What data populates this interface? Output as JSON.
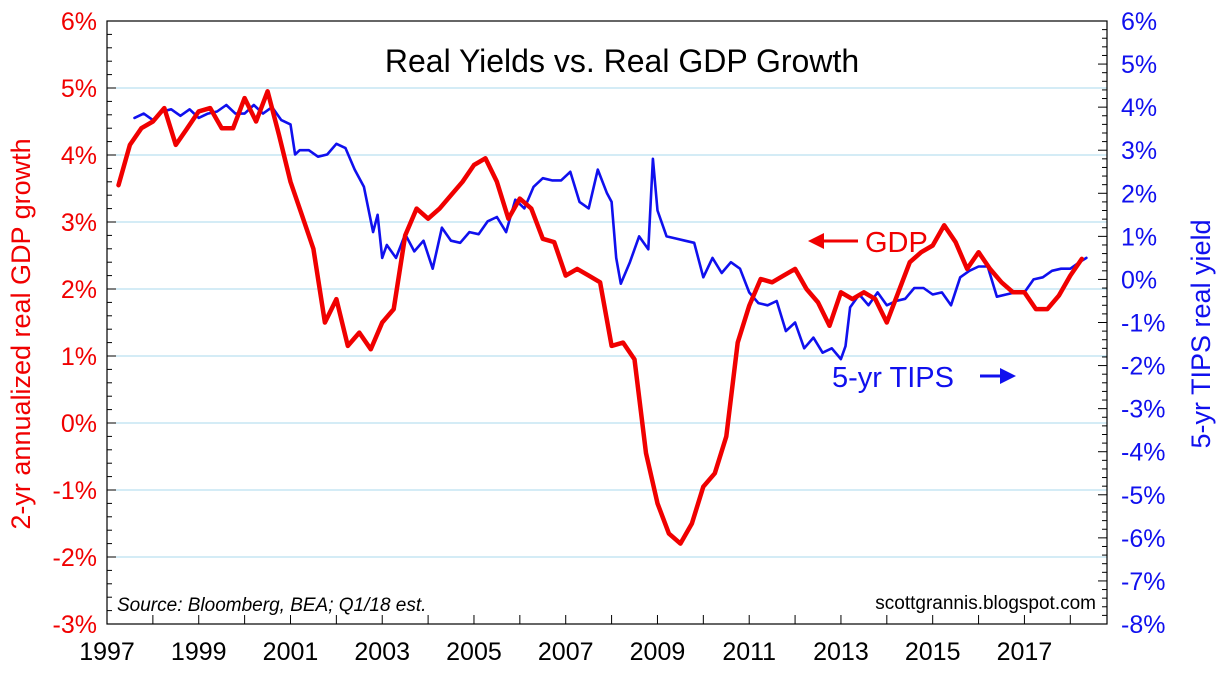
{
  "chart_data": {
    "type": "line",
    "title": "Real Yields vs. Real GDP Growth",
    "ylabel_left": "2-yr annualized real GDP growth",
    "ylabel_right": "5-yr TIPS real yield",
    "source_note": "Source: Bloomberg, BEA; Q1/18 est.",
    "credit": "scottgrannis.blogspot.com",
    "xlim": [
      1997.0,
      2018.8
    ],
    "x_ticks": [
      1997,
      1999,
      2001,
      2003,
      2005,
      2007,
      2009,
      2011,
      2013,
      2015,
      2017
    ],
    "x_tick_labels": [
      "1997",
      "1999",
      "2001",
      "2003",
      "2005",
      "2007",
      "2009",
      "2011",
      "2013",
      "2015",
      "2017"
    ],
    "ylim_left": [
      -3,
      6
    ],
    "ylim_right": [
      -8,
      6
    ],
    "left_ticks": [
      6,
      5,
      4,
      3,
      2,
      1,
      0,
      -1,
      -2,
      -3
    ],
    "left_tick_labels": [
      "6%",
      "5%",
      "4%",
      "3%",
      "2%",
      "1%",
      "0%",
      "-1%",
      "-2%",
      "-3%"
    ],
    "right_ticks": [
      6,
      5,
      4,
      3,
      2,
      1,
      0,
      -1,
      -2,
      -3,
      -4,
      -5,
      -6,
      -7,
      -8
    ],
    "right_tick_labels": [
      "6%",
      "5%",
      "4%",
      "3%",
      "2%",
      "1%",
      "0%",
      "-1%",
      "-2%",
      "-3%",
      "-4%",
      "-5%",
      "-6%",
      "-7%",
      "-8%"
    ],
    "grid": true,
    "annotations": {
      "gdp": "GDP",
      "tips": "5-yr TIPS"
    },
    "colors": {
      "gdp": "#f00000",
      "tips": "#1010ee",
      "grid": "#a8d8ee"
    },
    "series": [
      {
        "name": "GDP",
        "axis": "left",
        "x": [
          1997.25,
          1997.5,
          1997.75,
          1998.0,
          1998.25,
          1998.5,
          1998.75,
          1999.0,
          1999.25,
          1999.5,
          1999.75,
          2000.0,
          2000.25,
          2000.5,
          2000.75,
          2001.0,
          2001.25,
          2001.5,
          2001.75,
          2002.0,
          2002.25,
          2002.5,
          2002.75,
          2003.0,
          2003.25,
          2003.5,
          2003.75,
          2004.0,
          2004.25,
          2004.5,
          2004.75,
          2005.0,
          2005.25,
          2005.5,
          2005.75,
          2006.0,
          2006.25,
          2006.5,
          2006.75,
          2007.0,
          2007.25,
          2007.5,
          2007.75,
          2008.0,
          2008.25,
          2008.5,
          2008.75,
          2009.0,
          2009.25,
          2009.5,
          2009.75,
          2010.0,
          2010.25,
          2010.5,
          2010.75,
          2011.0,
          2011.25,
          2011.5,
          2011.75,
          2012.0,
          2012.25,
          2012.5,
          2012.75,
          2013.0,
          2013.25,
          2013.5,
          2013.75,
          2014.0,
          2014.25,
          2014.5,
          2014.75,
          2015.0,
          2015.25,
          2015.5,
          2015.75,
          2016.0,
          2016.25,
          2016.5,
          2016.75,
          2017.0,
          2017.25,
          2017.5,
          2017.75,
          2018.0,
          2018.25
        ],
        "values": [
          3.55,
          4.15,
          4.4,
          4.5,
          4.7,
          4.15,
          4.4,
          4.65,
          4.7,
          4.4,
          4.4,
          4.85,
          4.5,
          4.95,
          4.3,
          3.6,
          3.1,
          2.6,
          1.5,
          1.85,
          1.15,
          1.35,
          1.1,
          1.5,
          1.7,
          2.8,
          3.2,
          3.05,
          3.2,
          3.4,
          3.6,
          3.85,
          3.95,
          3.6,
          3.05,
          3.35,
          3.2,
          2.75,
          2.7,
          2.2,
          2.3,
          2.2,
          2.1,
          1.15,
          1.2,
          0.95,
          -0.45,
          -1.2,
          -1.65,
          -1.8,
          -1.5,
          -0.95,
          -0.75,
          -0.2,
          1.2,
          1.75,
          2.15,
          2.1,
          2.2,
          2.3,
          2.0,
          1.8,
          1.45,
          1.95,
          1.85,
          1.95,
          1.85,
          1.5,
          1.95,
          2.4,
          2.55,
          2.65,
          2.95,
          2.7,
          2.3,
          2.55,
          2.3,
          2.1,
          1.95,
          1.95,
          1.7,
          1.7,
          1.9,
          2.2,
          2.45
        ]
      },
      {
        "name": "5-yr TIPS",
        "axis": "right",
        "x": [
          1997.6,
          1997.8,
          1998.0,
          1998.2,
          1998.4,
          1998.6,
          1998.8,
          1999.0,
          1999.2,
          1999.4,
          1999.6,
          1999.8,
          2000.0,
          2000.2,
          2000.4,
          2000.6,
          2000.8,
          2001.0,
          2001.1,
          2001.2,
          2001.4,
          2001.6,
          2001.8,
          2002.0,
          2002.2,
          2002.4,
          2002.6,
          2002.8,
          2002.9,
          2003.0,
          2003.1,
          2003.3,
          2003.5,
          2003.7,
          2003.9,
          2004.1,
          2004.3,
          2004.5,
          2004.7,
          2004.9,
          2005.1,
          2005.3,
          2005.5,
          2005.7,
          2005.9,
          2006.1,
          2006.3,
          2006.5,
          2006.7,
          2006.9,
          2007.1,
          2007.3,
          2007.5,
          2007.7,
          2007.9,
          2008.0,
          2008.1,
          2008.2,
          2008.4,
          2008.6,
          2008.8,
          2008.9,
          2009.0,
          2009.2,
          2009.4,
          2009.6,
          2009.8,
          2010.0,
          2010.2,
          2010.4,
          2010.6,
          2010.8,
          2011.0,
          2011.2,
          2011.4,
          2011.6,
          2011.8,
          2012.0,
          2012.2,
          2012.4,
          2012.6,
          2012.8,
          2013.0,
          2013.1,
          2013.2,
          2013.4,
          2013.6,
          2013.8,
          2014.0,
          2014.2,
          2014.4,
          2014.6,
          2014.8,
          2015.0,
          2015.2,
          2015.4,
          2015.6,
          2015.8,
          2016.0,
          2016.2,
          2016.4,
          2016.6,
          2016.8,
          2017.0,
          2017.2,
          2017.4,
          2017.6,
          2017.8,
          2018.0,
          2018.2,
          2018.35
        ],
        "values": [
          3.75,
          3.85,
          3.7,
          3.9,
          3.95,
          3.8,
          3.95,
          3.75,
          3.85,
          3.9,
          4.05,
          3.85,
          3.85,
          4.05,
          3.85,
          4.0,
          3.7,
          3.6,
          2.9,
          3.0,
          3.0,
          2.85,
          2.9,
          3.15,
          3.05,
          2.55,
          2.15,
          1.1,
          1.5,
          0.5,
          0.8,
          0.5,
          1.05,
          0.65,
          0.9,
          0.25,
          1.2,
          0.9,
          0.85,
          1.1,
          1.05,
          1.35,
          1.45,
          1.1,
          1.85,
          1.65,
          2.15,
          2.35,
          2.3,
          2.3,
          2.5,
          1.8,
          1.65,
          2.55,
          2.0,
          1.8,
          0.5,
          -0.1,
          0.4,
          1.0,
          0.7,
          2.8,
          1.6,
          1.0,
          0.95,
          0.9,
          0.85,
          0.05,
          0.5,
          0.15,
          0.4,
          0.25,
          -0.3,
          -0.55,
          -0.6,
          -0.5,
          -1.2,
          -1.0,
          -1.6,
          -1.35,
          -1.7,
          -1.6,
          -1.85,
          -1.55,
          -0.65,
          -0.35,
          -0.6,
          -0.3,
          -0.6,
          -0.5,
          -0.45,
          -0.2,
          -0.2,
          -0.35,
          -0.3,
          -0.6,
          0.05,
          0.2,
          0.3,
          0.3,
          -0.4,
          -0.35,
          -0.3,
          -0.3,
          0.0,
          0.05,
          0.2,
          0.25,
          0.25,
          0.4,
          0.5
        ]
      }
    ]
  }
}
